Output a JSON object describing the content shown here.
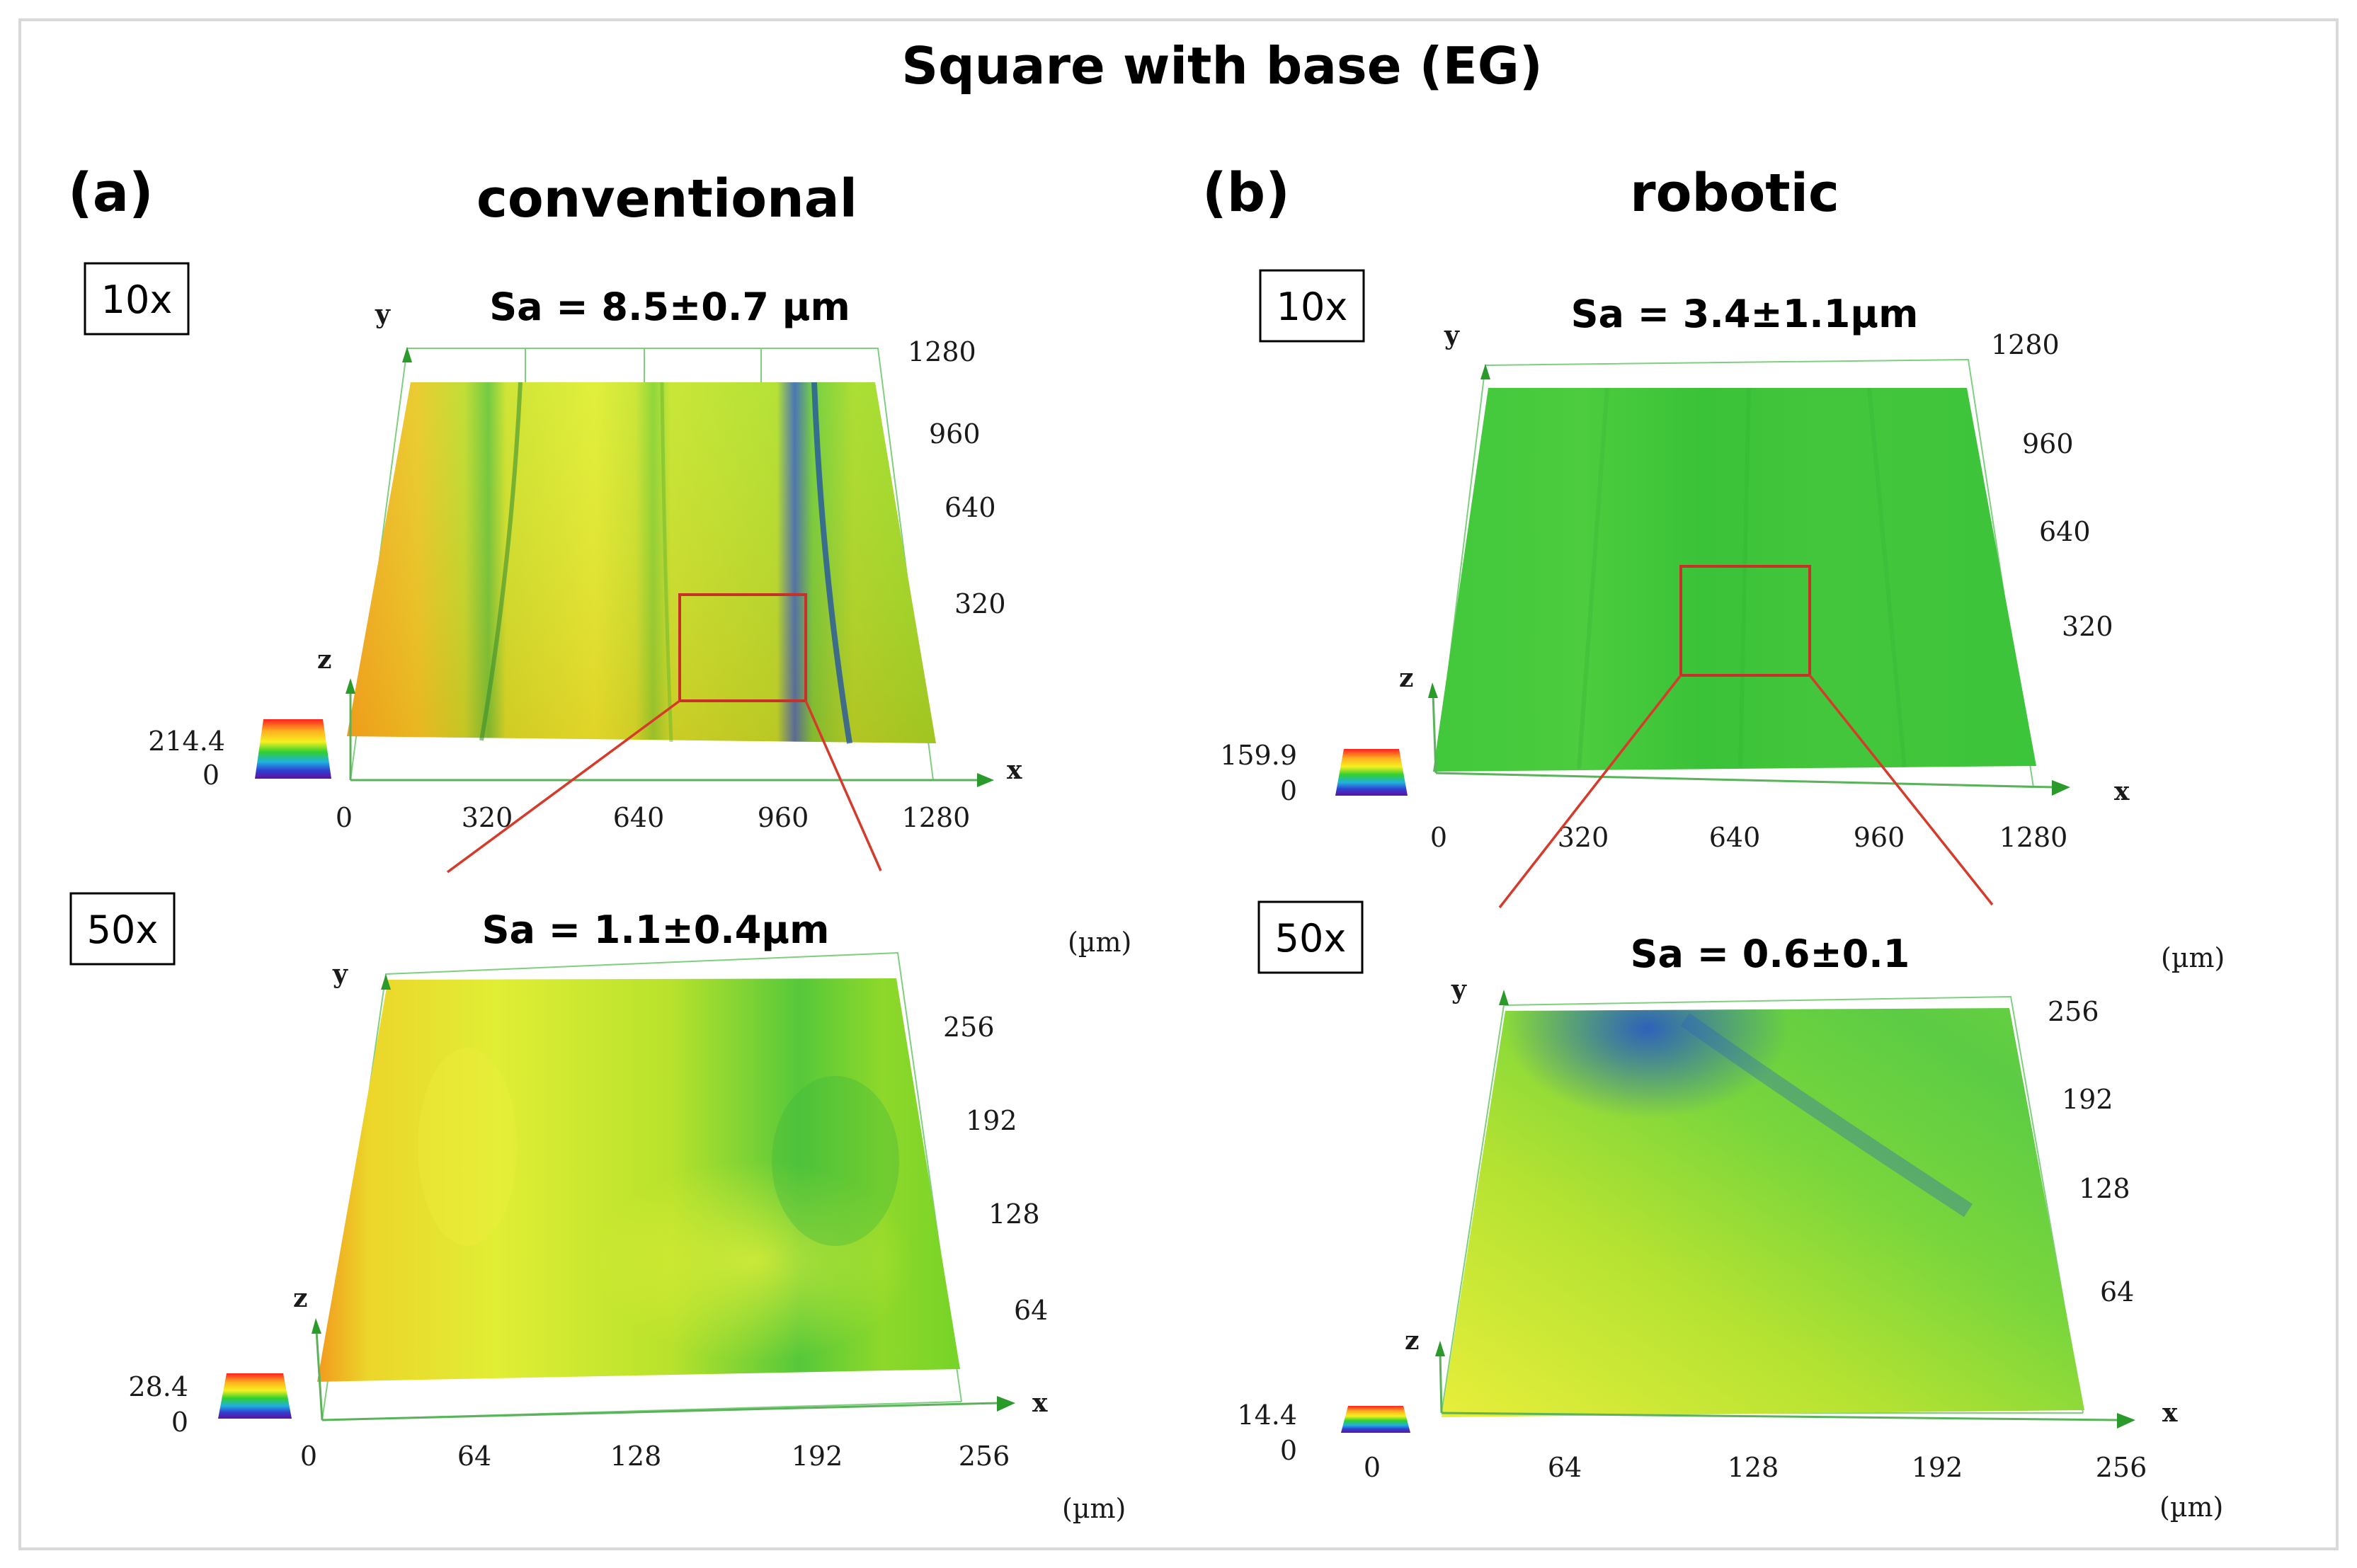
{
  "figure": {
    "title": "Square with base (EG)",
    "unit_label": "(µm)"
  },
  "panels": [
    {
      "id": "a",
      "label": "(a)",
      "heading": "conventional",
      "plots": [
        {
          "mag": "10x",
          "sa": "Sa = 8.5±0.7 µm",
          "x_ticks": [
            "0",
            "320",
            "640",
            "960",
            "1280"
          ],
          "y_ticks": [
            "320",
            "640",
            "960",
            "1280"
          ],
          "z_scale": [
            "214.4",
            "0"
          ],
          "axis_x": "x",
          "axis_y": "y",
          "axis_z": "z",
          "show_unit": false,
          "surface_colors": [
            "#f0a020",
            "#c8e020",
            "#d8ec30",
            "#b8e428",
            "#2a60c0",
            "#90dc20"
          ]
        },
        {
          "mag": "50x",
          "sa": "Sa = 1.1±0.4µm",
          "x_ticks": [
            "0",
            "64",
            "128",
            "192",
            "256"
          ],
          "y_ticks": [
            "64",
            "128",
            "192",
            "256"
          ],
          "z_scale": [
            "28.4",
            "0"
          ],
          "axis_x": "x",
          "axis_y": "y",
          "axis_z": "z",
          "show_unit": true,
          "surface_colors": [
            "#f09a20",
            "#dcef30",
            "#b4e228",
            "#44c43c",
            "#7ed828"
          ]
        }
      ]
    },
    {
      "id": "b",
      "label": "(b)",
      "heading": "robotic",
      "plots": [
        {
          "mag": "10x",
          "sa": "Sa = 3.4±1.1µm",
          "x_ticks": [
            "0",
            "320",
            "640",
            "960",
            "1280"
          ],
          "y_ticks": [
            "320",
            "640",
            "960",
            "1280"
          ],
          "z_scale": [
            "159.9",
            "0"
          ],
          "axis_x": "x",
          "axis_y": "y",
          "axis_z": "z",
          "show_unit": false,
          "surface_colors": [
            "#3cc83c",
            "#48cc3c",
            "#34c038",
            "#40c43a"
          ]
        },
        {
          "mag": "50x",
          "sa": "Sa = 0.6±0.1",
          "x_ticks": [
            "0",
            "64",
            "128",
            "192",
            "256"
          ],
          "y_ticks": [
            "64",
            "128",
            "192",
            "256"
          ],
          "z_scale": [
            "14.4",
            "0"
          ],
          "axis_x": "x",
          "axis_y": "y",
          "axis_z": "z",
          "show_unit": true,
          "surface_colors": [
            "#e2ef3c",
            "#9ade30",
            "#5ccf40",
            "#2f6ec0"
          ]
        }
      ]
    }
  ]
}
